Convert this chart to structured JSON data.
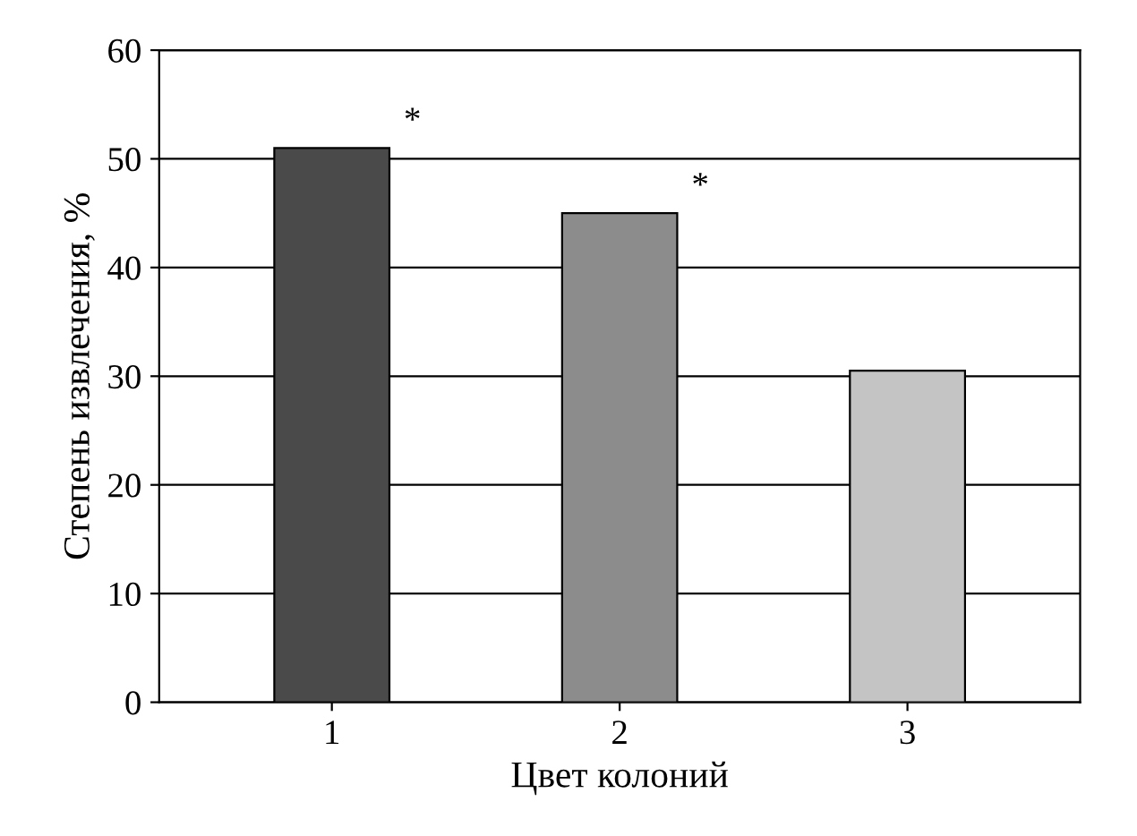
{
  "chart_data": {
    "type": "bar",
    "xlabel": "Цвет колоний",
    "ylabel": "Степень извлечения, %",
    "categories": [
      "1",
      "2",
      "3"
    ],
    "values": [
      51,
      45,
      30.5
    ],
    "colors": [
      "#4a4a4a",
      "#8c8c8c",
      "#c4c4c4"
    ],
    "ylim": [
      0,
      60
    ],
    "yticks": [
      0,
      10,
      20,
      30,
      40,
      50,
      60
    ],
    "grid": "y",
    "annotations": [
      {
        "text": "*",
        "x": "1",
        "y": 51
      },
      {
        "text": "*",
        "x": "2",
        "y": 45
      }
    ]
  }
}
